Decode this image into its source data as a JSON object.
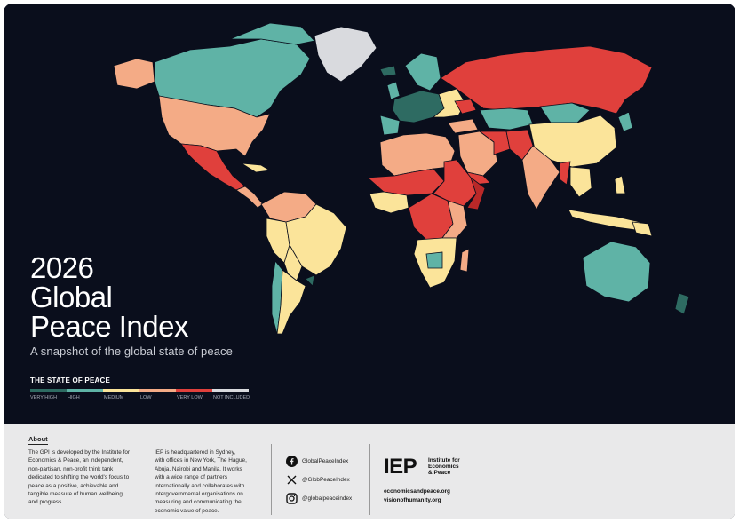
{
  "title_lines": [
    "2026",
    "Global",
    "Peace Index"
  ],
  "subtitle": "A snapshot of the global state of peace",
  "legend": {
    "title": "THE STATE OF PEACE",
    "items": [
      {
        "label": "VERY HIGH",
        "color": "#2e6b62"
      },
      {
        "label": "HIGH",
        "color": "#5fb3a6"
      },
      {
        "label": "MEDIUM",
        "color": "#fbe49a"
      },
      {
        "label": "LOW",
        "color": "#f4ab86"
      },
      {
        "label": "VERY LOW",
        "color": "#e0403c"
      },
      {
        "label": "NOT INCLUDED",
        "color": "#d9dade"
      }
    ]
  },
  "colors": {
    "background": "#0a0e1c",
    "ocean": "#0a0e1c",
    "footer": "#e9e9ea",
    "very_low_deep": "#b92828"
  },
  "footer": {
    "about_heading": "About",
    "about_col1": [
      "The GPI is developed by the Institute for",
      "Economics & Peace, an independent,",
      "non-partisan, non-profit think tank",
      "dedicated to shifting the world's focus to",
      "peace as a positive, achievable and",
      "tangible measure of human wellbeing",
      "and progress."
    ],
    "about_col2": [
      "IEP is headquartered in Sydney,",
      "with offices in New York, The Hague,",
      "Abuja, Nairobi and Manila. It works",
      "with a wide range of partners",
      "internationally and collaborates with",
      "intergovernmental organisations on",
      "measuring and communicating the",
      "economic value of peace."
    ],
    "social": [
      {
        "icon": "facebook-icon",
        "text": "GlobalPeaceIndex"
      },
      {
        "icon": "x-icon",
        "text": "@GlobPeaceIndex"
      },
      {
        "icon": "instagram-icon",
        "text": "@globalpeaceindex"
      }
    ],
    "logo_text": "IEP",
    "logo_subtext": [
      "Institute for",
      "Economics",
      "& Peace"
    ],
    "urls": [
      "economicsandpeace.org",
      "visionofhumanity.org"
    ]
  }
}
